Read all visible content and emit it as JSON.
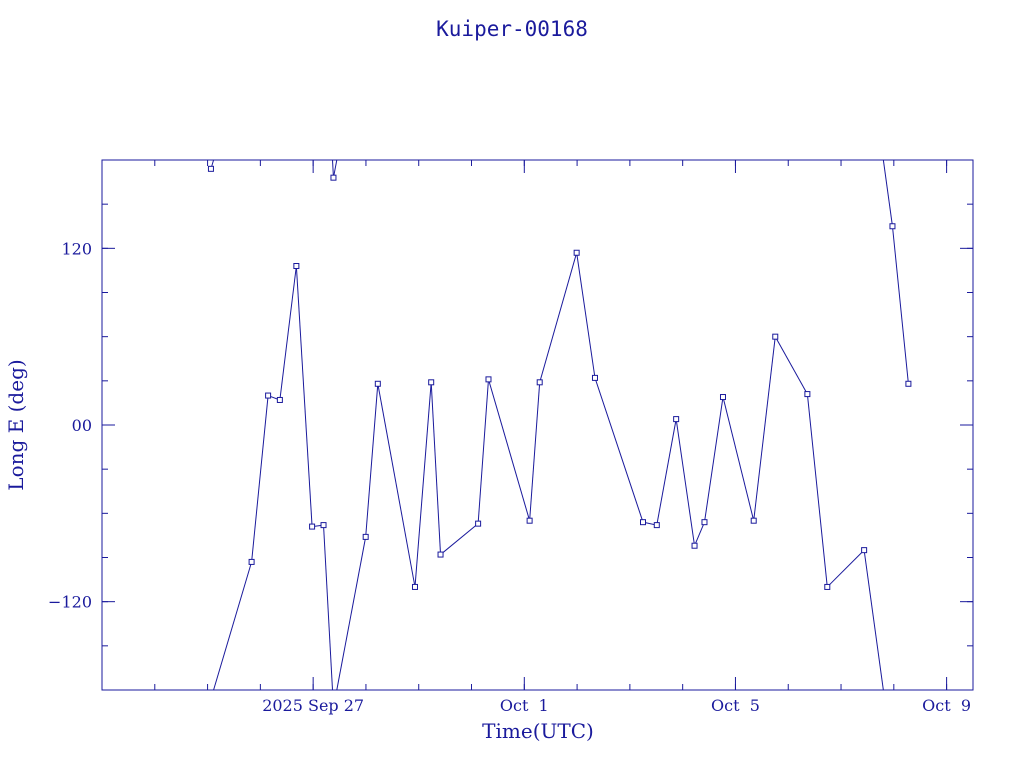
{
  "colors": {
    "ink": "#1a1a9c",
    "line": "#1a1a9c",
    "background": "#ffffff"
  },
  "chart_data": {
    "type": "line",
    "title": "Kuiper-00168",
    "xlabel": "Time(UTC)",
    "ylabel": "Long E (deg)",
    "xlim": [
      "2025-09-23T00:00:00Z",
      "2025-10-09T12:00:00Z"
    ],
    "ylim": [
      -180,
      180
    ],
    "x_ticks": [
      {
        "value": "2025-09-27T00:00:00Z",
        "label": "2025 Sep 27"
      },
      {
        "value": "2025-10-01T00:00:00Z",
        "label": "Oct  1"
      },
      {
        "value": "2025-10-05T00:00:00Z",
        "label": "Oct  5"
      },
      {
        "value": "2025-10-09T00:00:00Z",
        "label": "Oct  9"
      }
    ],
    "y_ticks": [
      {
        "value": 120,
        "label": "120"
      },
      {
        "value": 0,
        "label": "00"
      },
      {
        "value": -120,
        "label": "−120"
      }
    ],
    "grid": false,
    "wrap_longitude": true,
    "series": [
      {
        "points": [
          [
            "2025-09-25T01:32:00Z",
            174
          ],
          [
            "2025-09-25T20:01:00Z",
            -93
          ],
          [
            "2025-09-26T03:31:00Z",
            20
          ],
          [
            "2025-09-26T08:52:00Z",
            17
          ],
          [
            "2025-09-26T16:22:00Z",
            108
          ],
          [
            "2025-09-26T23:31:00Z",
            -69
          ],
          [
            "2025-09-27T04:43:00Z",
            -68
          ],
          [
            "2025-09-27T09:14:00Z",
            168
          ],
          [
            "2025-09-27T23:53:00Z",
            -76
          ],
          [
            "2025-09-28T05:24:00Z",
            28
          ],
          [
            "2025-09-28T22:18:00Z",
            -110
          ],
          [
            "2025-09-29T05:40:00Z",
            29
          ],
          [
            "2025-09-29T09:55:00Z",
            -88
          ],
          [
            "2025-09-30T03:00:00Z",
            -67
          ],
          [
            "2025-09-30T07:43:00Z",
            31
          ],
          [
            "2025-10-01T02:25:00Z",
            -65
          ],
          [
            "2025-10-01T07:00:00Z",
            29
          ],
          [
            "2025-10-01T23:48:00Z",
            117
          ],
          [
            "2025-10-02T08:08:00Z",
            32
          ],
          [
            "2025-10-03T05:58:00Z",
            -66
          ],
          [
            "2025-10-03T12:14:00Z",
            -68
          ],
          [
            "2025-10-03T21:02:00Z",
            4
          ],
          [
            "2025-10-04T05:24:00Z",
            -82
          ],
          [
            "2025-10-04T09:55:00Z",
            -66
          ],
          [
            "2025-10-04T18:20:00Z",
            19
          ],
          [
            "2025-10-05T08:18:00Z",
            -65
          ],
          [
            "2025-10-05T18:06:00Z",
            60
          ],
          [
            "2025-10-06T08:42:00Z",
            21
          ],
          [
            "2025-10-06T17:45:00Z",
            -110
          ],
          [
            "2025-10-07T10:30:00Z",
            -85
          ],
          [
            "2025-10-07T23:23:00Z",
            135
          ],
          [
            "2025-10-08T06:38:00Z",
            28
          ]
        ]
      }
    ]
  }
}
